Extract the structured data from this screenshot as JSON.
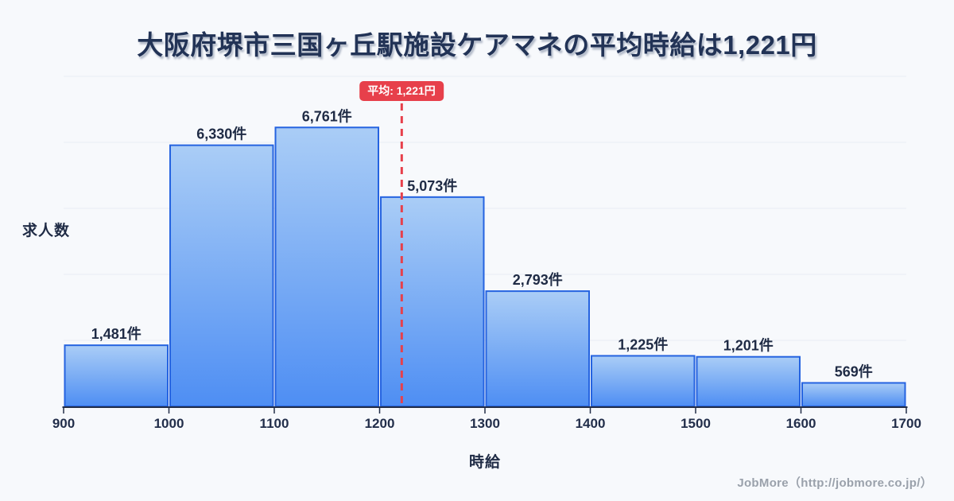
{
  "page": {
    "background": "#f7f9fc",
    "footer_credit": "JobMore（http://jobmore.co.jp/）"
  },
  "chart_data": {
    "type": "bar",
    "subtype": "histogram",
    "title": "大阪府堺市三国ヶ丘駅施設ケアマネの平均時給は1,221円",
    "xlabel": "時給",
    "ylabel": "求人数",
    "bin_edges": [
      900,
      1000,
      1100,
      1200,
      1300,
      1400,
      1500,
      1600,
      1700
    ],
    "x_tick_labels": [
      "900",
      "1000",
      "1100",
      "1200",
      "1300",
      "1400",
      "1500",
      "1600",
      "1700"
    ],
    "values": [
      1481,
      6330,
      6761,
      5073,
      2793,
      1225,
      1201,
      569
    ],
    "value_labels": [
      "1,481件",
      "6,330件",
      "6,761件",
      "5,073件",
      "2,793件",
      "1,225件",
      "1,201件",
      "569件"
    ],
    "ylim": [
      0,
      8000
    ],
    "grid_interval": 1600,
    "grid": "horizontal",
    "legend": "none",
    "average": {
      "value": 1221,
      "label": "平均: 1,221円"
    },
    "colors": {
      "bar_fill_top": "#aacdf6",
      "bar_fill_bottom": "#4e8ef3",
      "bar_border": "#2563e0",
      "average_line": "#e7404b",
      "average_badge_bg": "#e7404b",
      "average_badge_text": "#ffffff",
      "label_text": "#1f2b45",
      "tick_text": "#222e4a",
      "grid_line": "#e8edf5",
      "axis_line": "#232e48",
      "footer_text": "#9aa1ab",
      "background": "#f7f9fc"
    }
  }
}
